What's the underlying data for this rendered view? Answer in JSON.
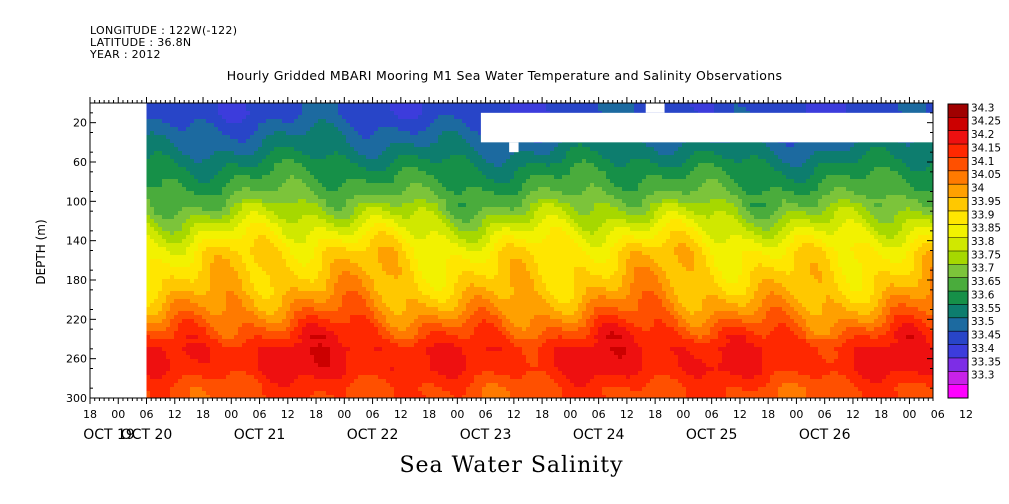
{
  "header": {
    "longitude": "LONGITUDE : 122W(-122)",
    "latitude": "LATITUDE : 36.8N",
    "year": "YEAR : 2012"
  },
  "chart_data": {
    "type": "heatmap",
    "title": "Hourly Gridded MBARI Mooring M1 Sea Water Temperature and Salinity Observations",
    "subtitle": "Sea Water Salinity",
    "ylabel": "DEPTH (m)",
    "xlabel": "",
    "y_axis": {
      "range": [
        0,
        300
      ],
      "inverted": true,
      "ticks": [
        20,
        60,
        100,
        140,
        180,
        220,
        260,
        300
      ]
    },
    "x_axis": {
      "start": "OCT 19 12:00",
      "end": "OCT 26 23:00",
      "hour_ticks": [
        "18",
        "00",
        "06",
        "12",
        "18",
        "00",
        "06",
        "12",
        "18",
        "00",
        "06",
        "12",
        "18",
        "00",
        "06",
        "12",
        "18",
        "00",
        "06",
        "12",
        "18",
        "00",
        "06",
        "12",
        "18",
        "00",
        "06",
        "12",
        "18",
        "00",
        "06",
        "12"
      ],
      "day_labels": [
        "OCT 19",
        "OCT 20",
        "OCT 21",
        "OCT 22",
        "OCT 23",
        "OCT 24",
        "OCT 25",
        "OCT 26"
      ]
    },
    "data_start": "OCT 20 00:00",
    "colorbar": {
      "levels": [
        "34.3",
        "34.25",
        "34.2",
        "34.15",
        "34.1",
        "34.05",
        "34",
        "33.95",
        "33.9",
        "33.85",
        "33.8",
        "33.75",
        "33.7",
        "33.65",
        "33.6",
        "33.55",
        "33.5",
        "33.45",
        "33.4",
        "33.35",
        "33.3"
      ],
      "colors": [
        "#a00000",
        "#cc0000",
        "#ee1010",
        "#ff2800",
        "#ff5000",
        "#ff7a00",
        "#ffa000",
        "#ffc800",
        "#ffe600",
        "#f2f200",
        "#d0e800",
        "#a6d800",
        "#7cc43a",
        "#4aac3c",
        "#169048",
        "#0d7d6e",
        "#1c6aa0",
        "#2845c8",
        "#3c3cdc",
        "#7d2de6",
        "#c822e8",
        "#ff00ff"
      ]
    },
    "depth_profile": [
      {
        "depth": 10,
        "salinity": 33.47
      },
      {
        "depth": 30,
        "salinity": 33.52
      },
      {
        "depth": 50,
        "salinity": 33.57
      },
      {
        "depth": 70,
        "salinity": 33.63
      },
      {
        "depth": 90,
        "salinity": 33.68
      },
      {
        "depth": 110,
        "salinity": 33.76
      },
      {
        "depth": 130,
        "salinity": 33.85
      },
      {
        "depth": 150,
        "salinity": 33.93
      },
      {
        "depth": 170,
        "salinity": 33.96
      },
      {
        "depth": 190,
        "salinity": 33.99
      },
      {
        "depth": 210,
        "salinity": 34.05
      },
      {
        "depth": 230,
        "salinity": 34.13
      },
      {
        "depth": 250,
        "salinity": 34.2
      },
      {
        "depth": 270,
        "salinity": 34.2
      },
      {
        "depth": 290,
        "salinity": 34.14
      }
    ],
    "missing_data": [
      {
        "start": "OCT 22 23:00",
        "end": "OCT 26 23:00",
        "depth_from": 10,
        "depth_to": 40
      },
      {
        "start": "OCT 23 05:00",
        "end": "OCT 23 07:00",
        "depth_from": 40,
        "depth_to": 50
      },
      {
        "start": "OCT 24 10:00",
        "end": "OCT 24 14:00",
        "depth_from": 0,
        "depth_to": 10
      }
    ]
  }
}
